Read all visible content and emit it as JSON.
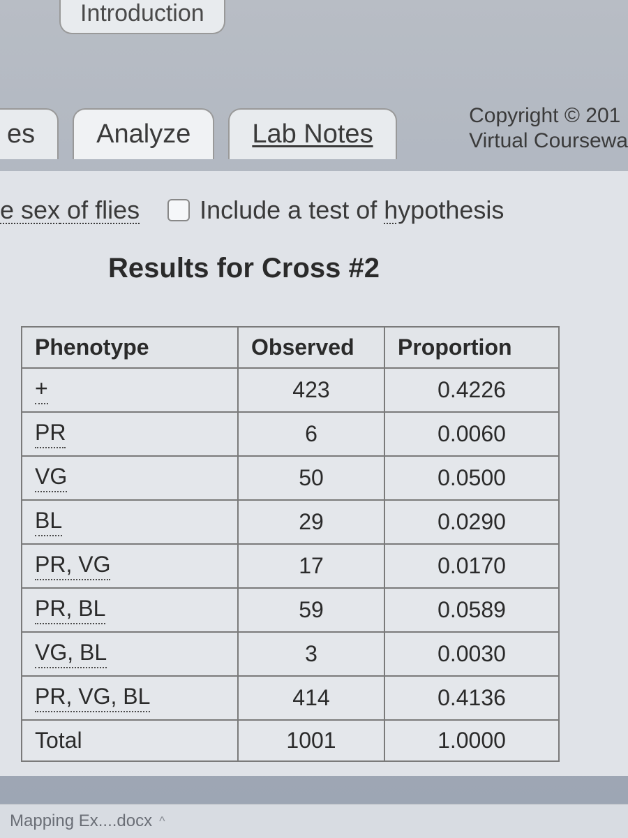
{
  "top_tab": {
    "label": "Introduction"
  },
  "tabs": {
    "left_partial": "es",
    "analyze": "Analyze",
    "lab_notes": "Lab Notes"
  },
  "copyright": {
    "line1": "Copyright © 201",
    "line2": "Virtual Coursewa"
  },
  "options": {
    "sex_link": "e sex of flies",
    "sex_link_underline_char": "x",
    "hypothesis_label_pre": "Include a test of ",
    "hypothesis_label_under": "h",
    "hypothesis_label_post": "ypothesis"
  },
  "results_title": "Results for Cross #2",
  "table": {
    "columns": [
      "Phenotype",
      "Observed",
      "Proportion"
    ],
    "rows": [
      {
        "phenotype": "+",
        "observed": "423",
        "proportion": "0.4226",
        "dotted": true
      },
      {
        "phenotype": "PR",
        "observed": "6",
        "proportion": "0.0060",
        "dotted": true
      },
      {
        "phenotype": "VG",
        "observed": "50",
        "proportion": "0.0500",
        "dotted": true
      },
      {
        "phenotype": "BL",
        "observed": "29",
        "proportion": "0.0290",
        "dotted": true
      },
      {
        "phenotype": "PR, VG",
        "observed": "17",
        "proportion": "0.0170",
        "dotted": true
      },
      {
        "phenotype": "PR, BL",
        "observed": "59",
        "proportion": "0.0589",
        "dotted": true
      },
      {
        "phenotype": "VG, BL",
        "observed": "3",
        "proportion": "0.0030",
        "dotted": true
      },
      {
        "phenotype": "PR, VG, BL",
        "observed": "414",
        "proportion": "0.4136",
        "dotted": true
      },
      {
        "phenotype": "Total",
        "observed": "1001",
        "proportion": "1.0000",
        "dotted": false
      }
    ]
  },
  "download": {
    "filename": "Mapping Ex....docx"
  },
  "colors": {
    "bg_gradient_top": "#b8bdc5",
    "bg_gradient_bottom": "#9ca5b3",
    "tab_bg": "#e8ebee",
    "content_bg": "#e0e3e8",
    "border": "#7a7a7a",
    "text": "#2a2a2a"
  }
}
